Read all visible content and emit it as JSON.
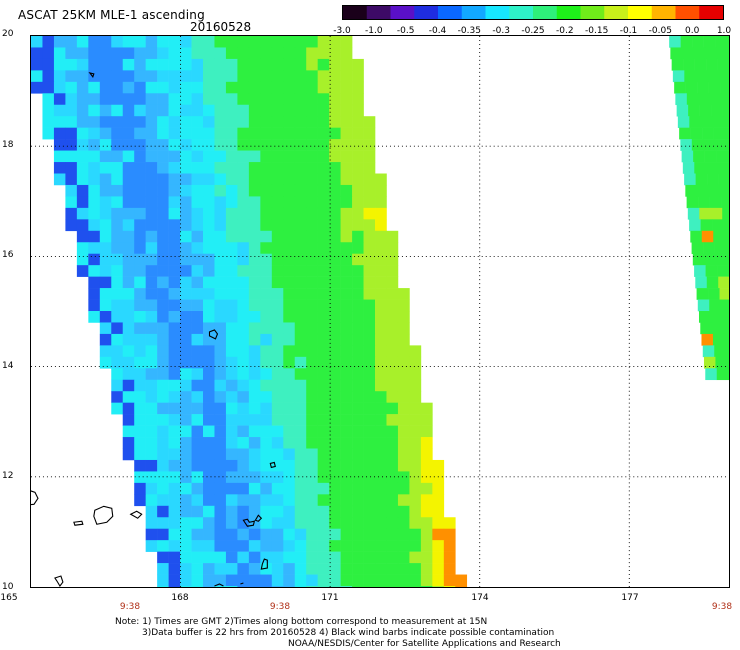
{
  "header": {
    "title": "ASCAT 25KM MLE-1 ascending",
    "date": "20160528"
  },
  "colorbar": {
    "colors": [
      "#1a001a",
      "#3d0a66",
      "#5a10c8",
      "#1f2de0",
      "#0a68ff",
      "#12a8ff",
      "#17e7ff",
      "#2ef2c8",
      "#2ef07a",
      "#1ef01a",
      "#70ec1a",
      "#c8f01a",
      "#ffff00",
      "#ffb400",
      "#ff5000",
      "#e60000"
    ],
    "ticks": [
      "-3.0",
      "-1.0",
      "-0.5",
      "-0.4",
      "-0.35",
      "-0.3",
      "-0.25",
      "-0.2",
      "-0.15",
      "-0.1",
      "-0.05",
      "0.0",
      "1.0"
    ]
  },
  "axes": {
    "y_ticks": [
      {
        "label": "20",
        "value": 20
      },
      {
        "label": "18",
        "value": 18
      },
      {
        "label": "16",
        "value": 16
      },
      {
        "label": "14",
        "value": 14
      },
      {
        "label": "12",
        "value": 12
      },
      {
        "label": "10",
        "value": 10
      }
    ],
    "x_ticks": [
      {
        "label": "165",
        "value": 165
      },
      {
        "label": "168",
        "value": 168
      },
      {
        "label": "171",
        "value": 171
      },
      {
        "label": "174",
        "value": 174
      },
      {
        "label": "177",
        "value": 177
      }
    ],
    "time_labels": [
      {
        "label": "9:38",
        "value": 167
      },
      {
        "label": "9:38",
        "value": 170
      },
      {
        "label": "9:38",
        "value": 179
      }
    ],
    "lon_range": [
      165,
      179
    ],
    "lat_range": [
      10,
      20
    ],
    "grid": "dotted"
  },
  "swath": {
    "colors": {
      "deep_blue": "#1f50ee",
      "blue": "#2a8cff",
      "mid_blue": "#35b6ff",
      "light_blue": "#2ad8ff",
      "cyan": "#22eef6",
      "teal": "#3ef0c0",
      "green": "#2ef040",
      "yellow_green": "#a8f02a",
      "yellow": "#f4f400",
      "orange": "#ff9000"
    }
  },
  "notes": {
    "line1": "Note: 1) Times are GMT 2)Times along bottom correspond to measurement at 15N",
    "line2": "3)Data buffer is 22 hrs from 20160528 4) Black wind barbs indicate possible contamination",
    "line3": "NOAA/NESDIS/Center for Satellite Applications and Research"
  }
}
